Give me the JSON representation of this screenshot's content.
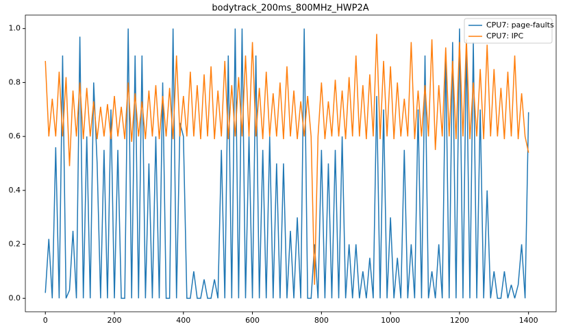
{
  "chart_data": {
    "type": "line",
    "title": "bodytrack_200ms_800MHz_HWP2A",
    "x": [
      0,
      10,
      20,
      30,
      40,
      50,
      60,
      70,
      80,
      90,
      100,
      110,
      120,
      130,
      140,
      150,
      160,
      170,
      180,
      190,
      200,
      210,
      220,
      230,
      240,
      250,
      260,
      270,
      280,
      290,
      300,
      310,
      320,
      330,
      340,
      350,
      360,
      370,
      380,
      390,
      400,
      410,
      420,
      430,
      440,
      450,
      460,
      470,
      480,
      490,
      500,
      510,
      520,
      530,
      540,
      550,
      560,
      570,
      580,
      590,
      600,
      610,
      620,
      630,
      640,
      650,
      660,
      670,
      680,
      690,
      700,
      710,
      720,
      730,
      740,
      750,
      760,
      770,
      780,
      790,
      800,
      810,
      820,
      830,
      840,
      850,
      860,
      870,
      880,
      890,
      900,
      910,
      920,
      930,
      940,
      950,
      960,
      970,
      980,
      990,
      1000,
      1010,
      1020,
      1030,
      1040,
      1050,
      1060,
      1070,
      1080,
      1090,
      1100,
      1110,
      1120,
      1130,
      1140,
      1150,
      1160,
      1170,
      1180,
      1190,
      1200,
      1210,
      1220,
      1230,
      1240,
      1250,
      1260,
      1270,
      1280,
      1290,
      1300,
      1310,
      1320,
      1330,
      1340,
      1350,
      1360,
      1370,
      1380,
      1390,
      1400
    ],
    "series": [
      {
        "name": "CPU7: page-faults",
        "color": "#1f77b4",
        "values": [
          0.02,
          0.22,
          0,
          0.56,
          0,
          0.9,
          0,
          0.03,
          0.25,
          0,
          0.97,
          0,
          0.6,
          0,
          0.8,
          0.5,
          0,
          0.55,
          0,
          0.7,
          0,
          0.55,
          0,
          0,
          1.0,
          0,
          0.9,
          0,
          0.9,
          0,
          0.5,
          0,
          0.6,
          0,
          0.8,
          0,
          0,
          1.0,
          0,
          0.65,
          0.6,
          0,
          0,
          0.1,
          0,
          0,
          0.07,
          0,
          0,
          0.07,
          0,
          0.55,
          0,
          0.9,
          0,
          1.0,
          0,
          1.0,
          0,
          0.6,
          0,
          0.9,
          0,
          0.55,
          0,
          0.6,
          0,
          0.5,
          0,
          0.5,
          0,
          0.25,
          0,
          0.3,
          0,
          1.0,
          0,
          0,
          0.2,
          0,
          0.55,
          0,
          0.5,
          0,
          0.55,
          0,
          0.6,
          0,
          0.2,
          0,
          0.2,
          0,
          0.1,
          0,
          0.15,
          0,
          0.75,
          0,
          0.7,
          0,
          0.3,
          0,
          0.15,
          0,
          0.55,
          0,
          0.2,
          0,
          0.7,
          0,
          0.9,
          0,
          0.1,
          0,
          0.2,
          0,
          0.9,
          0,
          0.95,
          0,
          1.0,
          0,
          0.95,
          0,
          0.95,
          0,
          0.7,
          0,
          0.4,
          0,
          0.1,
          0,
          0,
          0.1,
          0,
          0.05,
          0,
          0.05,
          0.2,
          0,
          0.69
        ]
      },
      {
        "name": "CPU7: IPC",
        "color": "#ff7f0e",
        "values": [
          0.88,
          0.6,
          0.74,
          0.6,
          0.84,
          0.6,
          0.82,
          0.49,
          0.77,
          0.6,
          0.8,
          0.59,
          0.78,
          0.6,
          0.73,
          0.59,
          0.71,
          0.6,
          0.72,
          0.59,
          0.75,
          0.6,
          0.71,
          0.59,
          0.8,
          0.58,
          0.76,
          0.6,
          0.73,
          0.59,
          0.77,
          0.6,
          0.79,
          0.59,
          0.75,
          0.6,
          0.78,
          0.59,
          0.9,
          0.6,
          0.75,
          0.6,
          0.84,
          0.6,
          0.79,
          0.59,
          0.83,
          0.6,
          0.86,
          0.59,
          0.77,
          0.6,
          0.88,
          0.59,
          0.79,
          0.6,
          0.82,
          0.6,
          0.9,
          0.6,
          0.95,
          0.6,
          0.78,
          0.59,
          0.84,
          0.6,
          0.76,
          0.6,
          0.8,
          0.59,
          0.86,
          0.6,
          0.77,
          0.59,
          0.73,
          0.6,
          0.75,
          0.6,
          0.05,
          0.6,
          0.8,
          0.59,
          0.73,
          0.6,
          0.81,
          0.6,
          0.77,
          0.59,
          0.82,
          0.6,
          0.9,
          0.6,
          0.79,
          0.59,
          0.83,
          0.6,
          0.98,
          0.59,
          0.88,
          0.6,
          0.86,
          0.59,
          0.8,
          0.6,
          0.74,
          0.6,
          0.95,
          0.59,
          0.77,
          0.6,
          0.79,
          0.6,
          0.96,
          0.55,
          0.79,
          0.6,
          0.93,
          0.6,
          0.88,
          0.59,
          0.95,
          0.6,
          0.96,
          0.59,
          0.8,
          0.6,
          0.85,
          0.59,
          0.94,
          0.6,
          0.85,
          0.6,
          0.78,
          0.59,
          0.84,
          0.6,
          0.9,
          0.59,
          0.76,
          0.6,
          0.54
        ]
      }
    ],
    "xlim": [
      -58,
      1480
    ],
    "ylim": [
      -0.05,
      1.05
    ],
    "xticks": [
      0,
      200,
      400,
      600,
      800,
      1000,
      1200,
      1400
    ],
    "yticks": [
      {
        "value": 0,
        "label": "0.0"
      },
      0.2,
      0.4,
      0.6,
      0.8,
      {
        "value": 1,
        "label": "1.0"
      }
    ],
    "legend": "upper right"
  }
}
